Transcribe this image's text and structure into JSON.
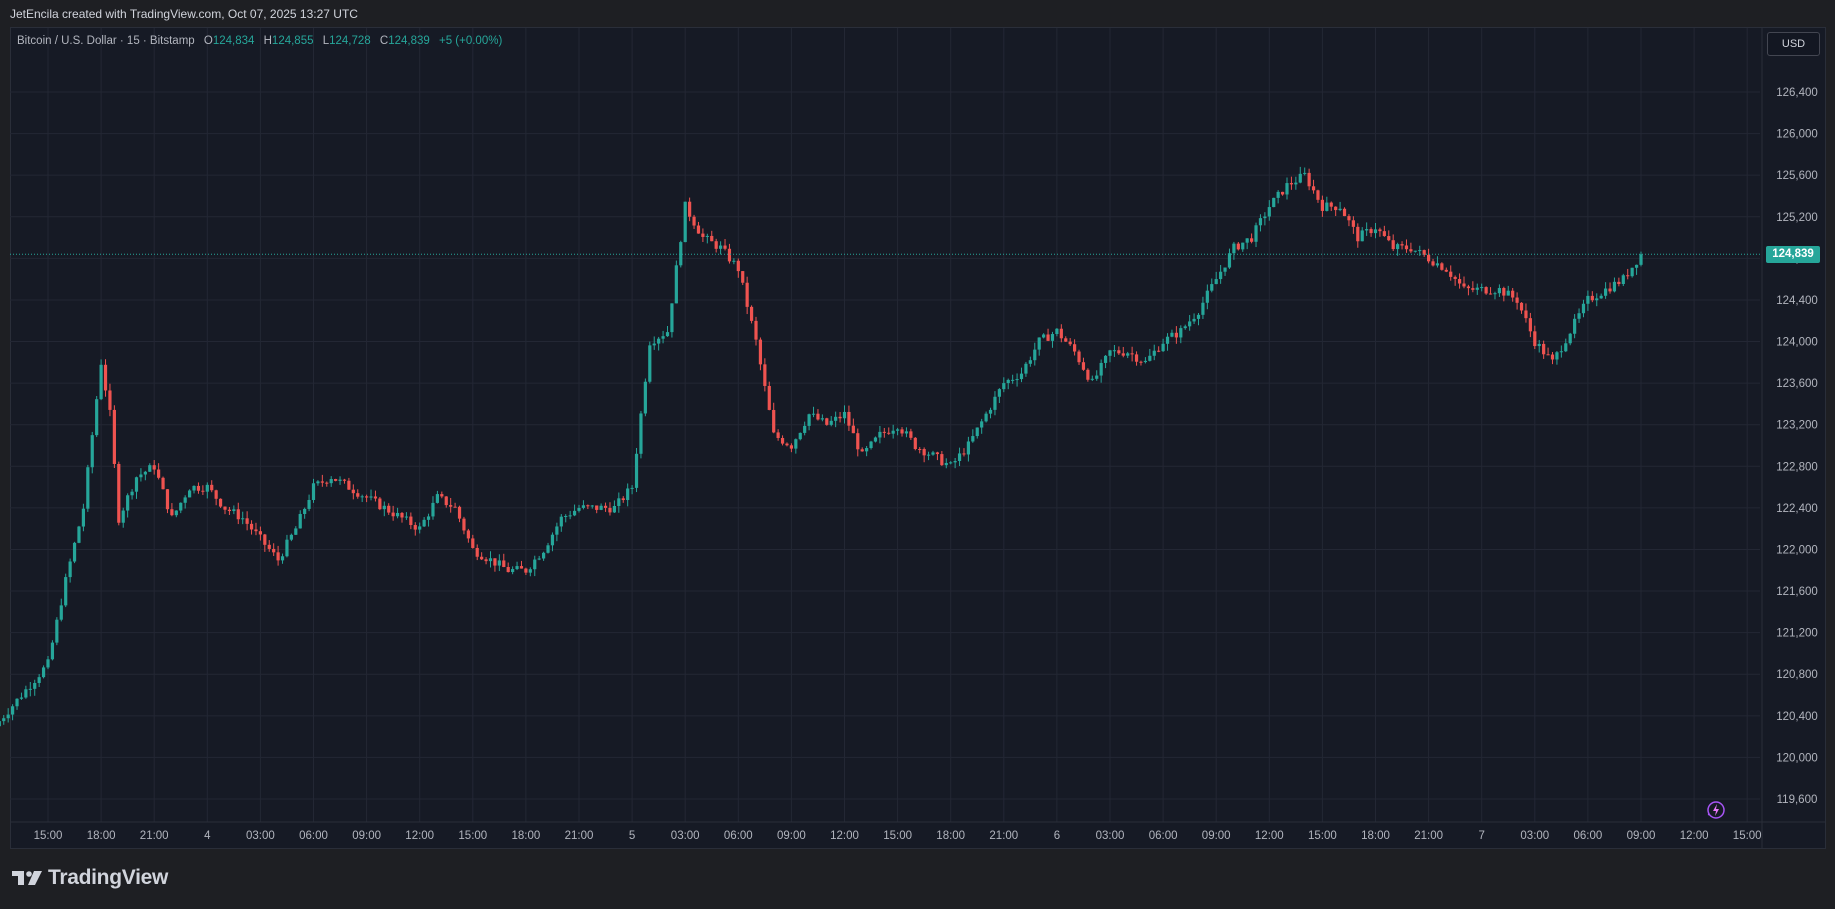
{
  "header": {
    "credit": "JetEncila created with TradingView.com, Oct 07, 2025 13:27 UTC"
  },
  "legend": {
    "symbol": "Bitcoin / U.S. Dollar · 15 · Bitstamp",
    "open_label": "O",
    "open": "124,834",
    "high_label": "H",
    "high": "124,855",
    "low_label": "L",
    "low": "124,728",
    "close_label": "C",
    "close": "124,839",
    "change": "+5 (+0.00%)"
  },
  "currency_button": "USD",
  "last_price_tag": "124,839",
  "brand": {
    "name": "TradingView"
  },
  "colors": {
    "up": "#26a69a",
    "down": "#ef5350",
    "background": "#161a25",
    "grid": "#232734",
    "text": "#b2b5be"
  },
  "icons": {
    "brand": "tradingview-logo-icon",
    "bolt": "lightning-icon"
  },
  "chart_data": {
    "type": "candlestick",
    "instrument": "Bitcoin / U.S. Dollar",
    "interval": "15",
    "exchange": "Bitstamp",
    "x_tick_labels": [
      "15:00",
      "18:00",
      "21:00",
      "4",
      "03:00",
      "06:00",
      "09:00",
      "12:00",
      "15:00",
      "18:00",
      "21:00",
      "5",
      "03:00",
      "06:00",
      "09:00",
      "12:00",
      "15:00",
      "18:00",
      "21:00",
      "6",
      "03:00",
      "06:00",
      "09:00",
      "12:00",
      "15:00",
      "18:00",
      "21:00",
      "7",
      "03:00",
      "06:00",
      "09:00",
      "12:00",
      "15:00"
    ],
    "y_ticks": [
      126400,
      126000,
      125600,
      125200,
      124800,
      124400,
      124000,
      123600,
      123200,
      122800,
      122400,
      122000,
      121600,
      121200,
      120800,
      120400,
      120000,
      119600
    ],
    "y_tick_labels": [
      "126,400",
      "126,000",
      "125,600",
      "125,200",
      "124,800",
      "124,400",
      "124,000",
      "123,600",
      "123,200",
      "122,800",
      "122,400",
      "122,000",
      "121,600",
      "121,200",
      "120,800",
      "120,400",
      "120,000",
      "119,600"
    ],
    "ylim": [
      119450,
      126850
    ],
    "x_unit": "hours since first tick (Oct 3 15:00)",
    "xlim": [
      -2.5,
      97
    ],
    "last_price": 124839,
    "anchors": [
      [
        -3,
        120300
      ],
      [
        0,
        120900
      ],
      [
        1,
        121700
      ],
      [
        2,
        122400
      ],
      [
        3,
        123800
      ],
      [
        3.5,
        123300
      ],
      [
        4,
        122300
      ],
      [
        5,
        122700
      ],
      [
        6,
        122800
      ],
      [
        7,
        122300
      ],
      [
        8,
        122600
      ],
      [
        9,
        122600
      ],
      [
        10,
        122400
      ],
      [
        11,
        122300
      ],
      [
        12,
        122100
      ],
      [
        13,
        121900
      ],
      [
        14,
        122200
      ],
      [
        15,
        122600
      ],
      [
        16,
        122700
      ],
      [
        17,
        122600
      ],
      [
        18,
        122500
      ],
      [
        19,
        122400
      ],
      [
        20,
        122300
      ],
      [
        21,
        122200
      ],
      [
        22,
        122500
      ],
      [
        23,
        122400
      ],
      [
        24,
        122000
      ],
      [
        25,
        121900
      ],
      [
        26,
        121800
      ],
      [
        27,
        121800
      ],
      [
        28,
        122000
      ],
      [
        29,
        122300
      ],
      [
        30,
        122400
      ],
      [
        31,
        122400
      ],
      [
        32,
        122400
      ],
      [
        33,
        122600
      ],
      [
        34,
        124000
      ],
      [
        35,
        124100
      ],
      [
        36,
        125300
      ],
      [
        37,
        125000
      ],
      [
        38,
        124900
      ],
      [
        39,
        124700
      ],
      [
        40,
        124000
      ],
      [
        41,
        123100
      ],
      [
        42,
        123000
      ],
      [
        43,
        123300
      ],
      [
        44,
        123200
      ],
      [
        45,
        123300
      ],
      [
        46,
        122900
      ],
      [
        47,
        123100
      ],
      [
        48,
        123200
      ],
      [
        49,
        123000
      ],
      [
        50,
        122900
      ],
      [
        51,
        122800
      ],
      [
        52,
        123000
      ],
      [
        53,
        123300
      ],
      [
        54,
        123600
      ],
      [
        55,
        123700
      ],
      [
        56,
        124000
      ],
      [
        57,
        124100
      ],
      [
        58,
        123900
      ],
      [
        59,
        123600
      ],
      [
        60,
        123900
      ],
      [
        61,
        123900
      ],
      [
        62,
        123800
      ],
      [
        63,
        124000
      ],
      [
        64,
        124100
      ],
      [
        65,
        124300
      ],
      [
        66,
        124600
      ],
      [
        67,
        124900
      ],
      [
        68,
        125000
      ],
      [
        69,
        125300
      ],
      [
        70,
        125500
      ],
      [
        71,
        125600
      ],
      [
        72,
        125300
      ],
      [
        73,
        125300
      ],
      [
        74,
        125000
      ],
      [
        75,
        125100
      ],
      [
        76,
        124900
      ],
      [
        77,
        124900
      ],
      [
        78,
        124800
      ],
      [
        79,
        124700
      ],
      [
        80,
        124500
      ],
      [
        81,
        124500
      ],
      [
        82,
        124500
      ],
      [
        83,
        124400
      ],
      [
        84,
        124000
      ],
      [
        85,
        123800
      ],
      [
        86,
        124100
      ],
      [
        87,
        124400
      ],
      [
        88,
        124500
      ],
      [
        89,
        124600
      ],
      [
        90,
        124839
      ]
    ]
  }
}
